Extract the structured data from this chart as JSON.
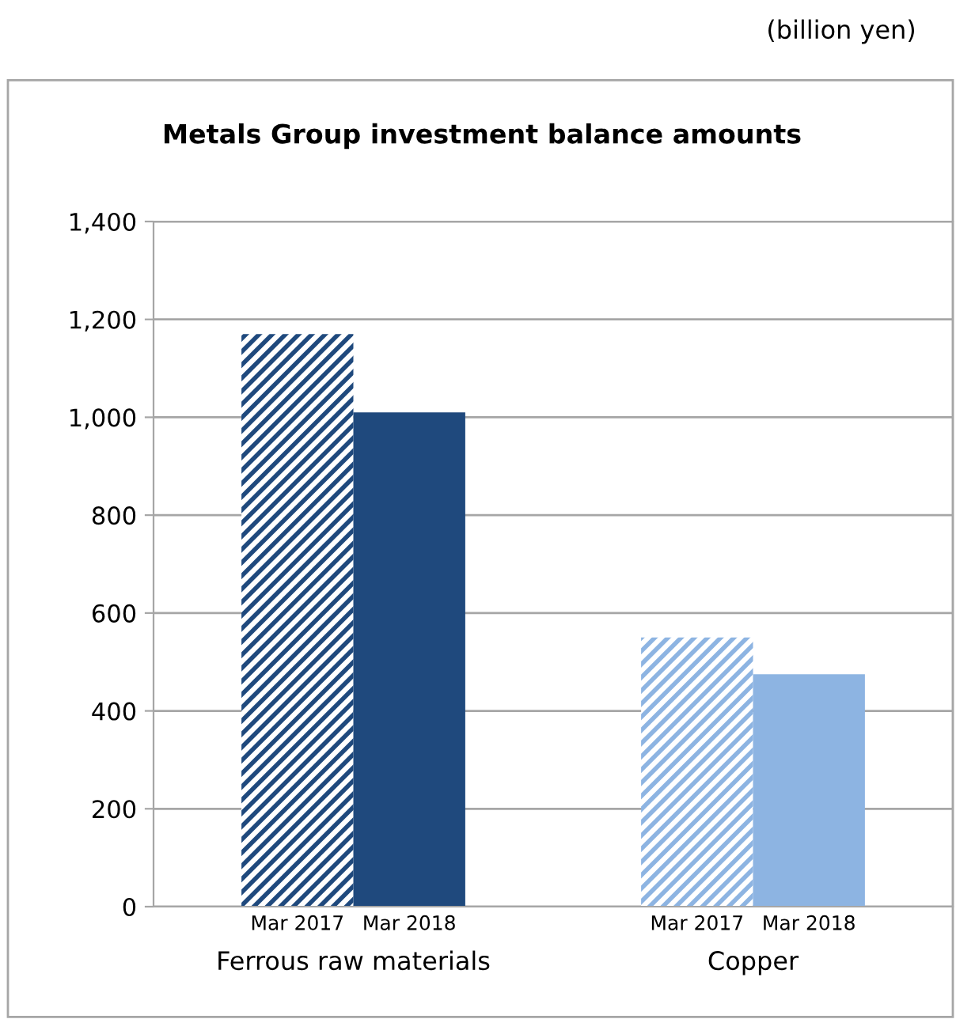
{
  "chart_data": {
    "type": "bar",
    "title": "Metals Group investment balance amounts",
    "annotations": [
      "(billion yen)"
    ],
    "categories": [
      "Ferrous raw materials",
      "Copper"
    ],
    "series": [
      {
        "name": "Mar 2017",
        "colors": [
          "#1f497d",
          "#8db4e2"
        ],
        "values": [
          1170,
          550
        ]
      },
      {
        "name": "Mar 2018",
        "colors": [
          "#1f497d",
          "#8db4e2"
        ],
        "values": [
          1010,
          475
        ]
      }
    ],
    "ylim": [
      0,
      1400
    ],
    "yticks": [
      {
        "value": 0,
        "label": "0"
      },
      {
        "value": 200,
        "label": "200"
      },
      {
        "value": 400,
        "label": "400"
      },
      {
        "value": 600,
        "label": "600"
      },
      {
        "value": 800,
        "label": "800"
      },
      {
        "value": 1000,
        "label": "1,000"
      },
      {
        "value": 1200,
        "label": "1,200"
      },
      {
        "value": 1400,
        "label": "1,400"
      }
    ],
    "grid": "y",
    "legend": false
  }
}
